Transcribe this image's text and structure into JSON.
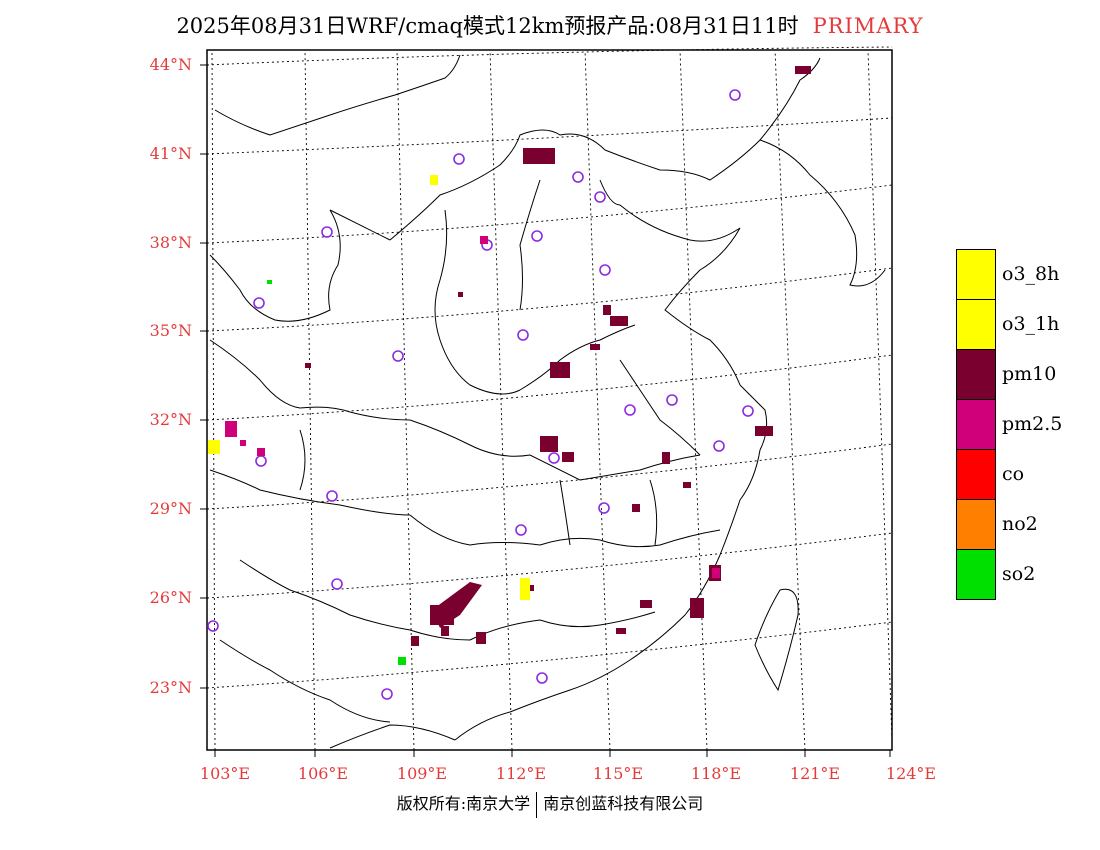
{
  "header": {
    "title": "2025年08月31日WRF/cmaq模式12km预报产品:08月31日11时",
    "tag": "PRIMARY"
  },
  "map": {
    "lat_labels": [
      "44°N",
      "41°N",
      "38°N",
      "35°N",
      "32°N",
      "29°N",
      "26°N",
      "23°N"
    ],
    "lon_labels": [
      "103°E",
      "106°E",
      "109°E",
      "112°E",
      "115°E",
      "118°E",
      "121°E",
      "124°E"
    ]
  },
  "legend": {
    "items": [
      {
        "label": "o3_8h",
        "color": "#ffff00"
      },
      {
        "label": "o3_1h",
        "color": "#ffff00"
      },
      {
        "label": "pm10",
        "color": "#7a0030"
      },
      {
        "label": "pm2.5",
        "color": "#d0007a"
      },
      {
        "label": "co",
        "color": "#ff0000"
      },
      {
        "label": "no2",
        "color": "#ff7f00"
      },
      {
        "label": "so2",
        "color": "#00e000"
      }
    ]
  },
  "colors": {
    "axis_label": "#e53a3a",
    "station_marker": "#8b2be2",
    "pm10": "#7a0030",
    "pm25": "#d0007a",
    "o3": "#ffff00",
    "so2": "#00e000"
  },
  "footer": {
    "copyright_left": "版权所有:南京大学",
    "copyright_right": "南京创蓝科技有限公司"
  }
}
